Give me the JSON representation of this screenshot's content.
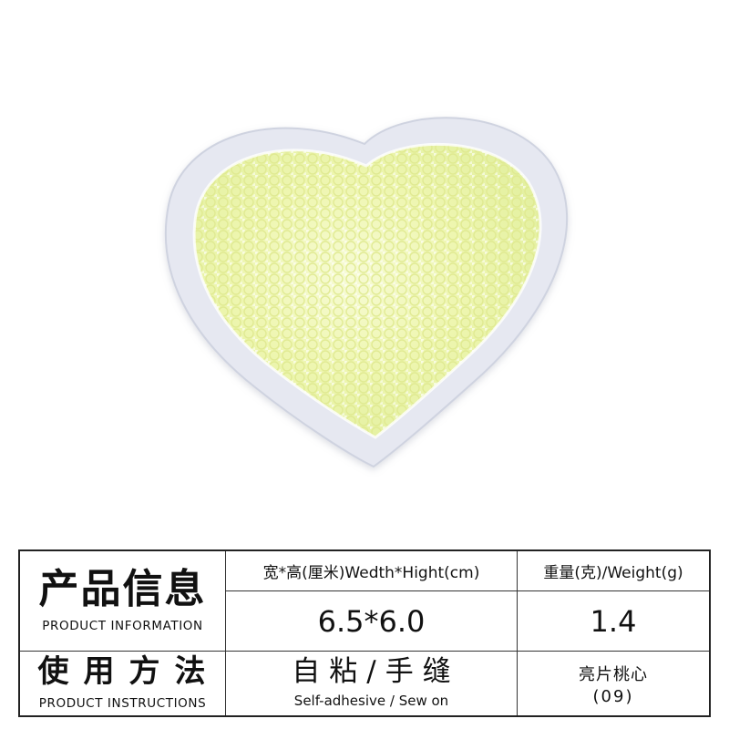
{
  "product_image": {
    "icon": "sequin-heart-patch",
    "colors": {
      "border": "#e6e8f1",
      "sequins": "#f1f7b6",
      "background": "#ffffff"
    }
  },
  "info_table": {
    "product_info": {
      "title_cn": "产品信息",
      "title_en": "PRODUCT INFORMATION"
    },
    "size": {
      "header": "宽*高(厘米)Wedth*Hight(cm)",
      "value": "6.5*6.0"
    },
    "weight": {
      "header": "重量(克)/Weight(g)",
      "value": "1.4"
    },
    "instructions": {
      "title_cn": "使用方法",
      "title_en": "PRODUCT INSTRUCTIONS",
      "method_cn": "自粘/手缝",
      "method_en": "Self-adhesive / Sew on"
    },
    "style": {
      "name_cn": "亮片桃心",
      "code": "(09)"
    }
  }
}
